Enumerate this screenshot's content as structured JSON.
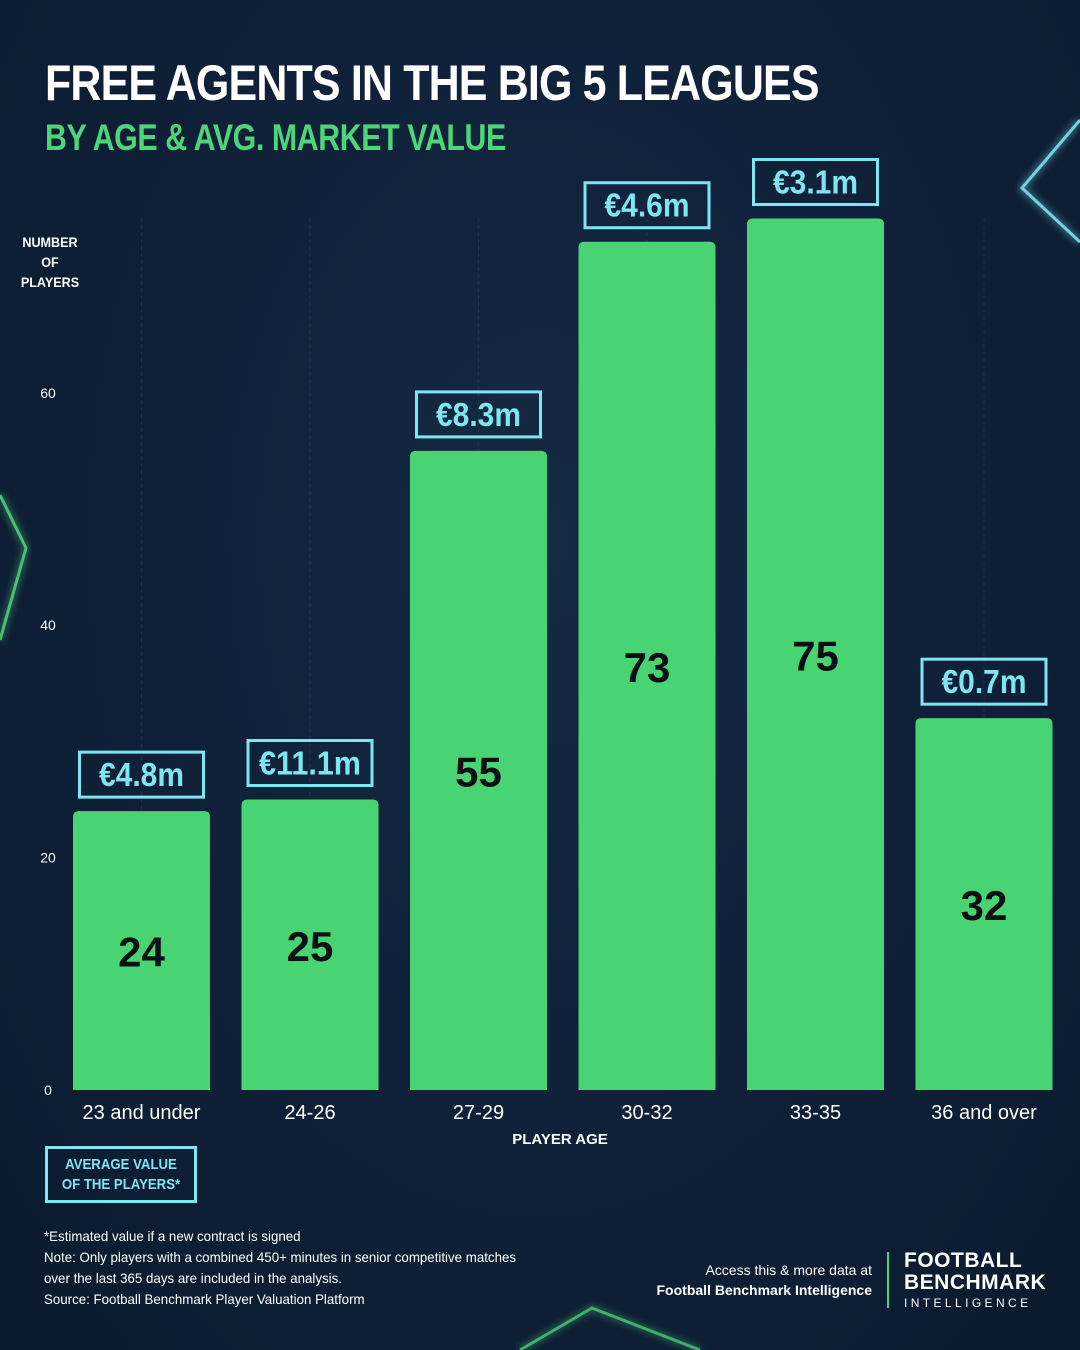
{
  "header": {
    "title": "FREE AGENTS IN THE BIG 5 LEAGUES",
    "subtitle": "BY AGE & AVG. MARKET VALUE"
  },
  "colors": {
    "bar": "#49d474",
    "accent_cyan": "#7de6f0",
    "accent_green": "#4ed479",
    "background": "#0f2038"
  },
  "chart_data": {
    "type": "bar",
    "title": "FREE AGENTS IN THE BIG 5 LEAGUES",
    "subtitle": "BY AGE & AVG. MARKET VALUE",
    "xlabel": "PLAYER AGE",
    "ylabel": "NUMBER OF PLAYERS",
    "ylim": [
      0,
      75
    ],
    "yticks": [
      0,
      20,
      40,
      60
    ],
    "grid": true,
    "categories": [
      "23 and under",
      "24-26",
      "27-29",
      "30-32",
      "33-35",
      "36 and over"
    ],
    "series": [
      {
        "name": "Number of players",
        "values": [
          24,
          25,
          55,
          73,
          75,
          32
        ]
      },
      {
        "name": "Average value of the players*",
        "values": [
          "€4.8m",
          "€11.1m",
          "€8.3m",
          "€4.6m",
          "€3.1m",
          "€0.7m"
        ]
      }
    ]
  },
  "legend": {
    "line1": "AVERAGE VALUE",
    "line2": "OF THE PLAYERS*"
  },
  "footer": {
    "notes": [
      "*Estimated value if a new contract is signed",
      "Note: Only players with a combined 450+ minutes in senior competitive matches",
      "over the last 365 days are included in the analysis.",
      "Source: Football Benchmark Player Valuation Platform"
    ],
    "access_line1": "Access this & more data at",
    "access_line2": "Football Benchmark Intelligence",
    "brand_line1": "FOOTBALL",
    "brand_line2": "BENCHMARK",
    "brand_line3": "INTELLIGENCE"
  }
}
